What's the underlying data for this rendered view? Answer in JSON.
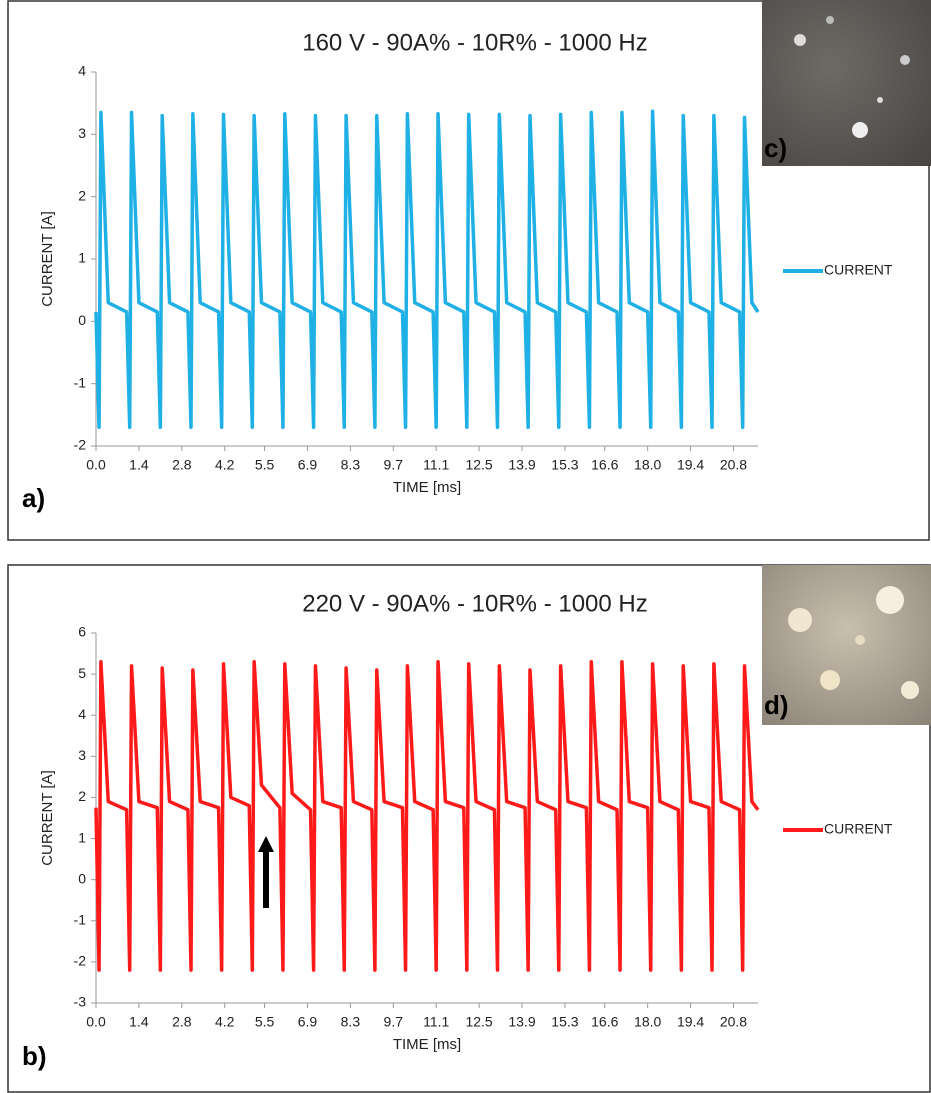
{
  "chart_data": [
    {
      "type": "line",
      "title": "160 V - 90A% - 10R% - 1000 Hz",
      "x_label": "TIME [ms]",
      "y_label": "CURRENT [A]",
      "panel_label": "a)",
      "photo_label": "c)",
      "x": [
        0,
        0.1,
        0.16,
        0.4,
        1,
        1.1,
        1.16,
        1.4,
        2,
        2.1,
        2.16,
        2.4,
        3,
        3.1,
        3.16,
        3.4,
        4,
        4.1,
        4.16,
        4.4,
        5,
        5.1,
        5.16,
        5.4,
        6,
        6.1,
        6.16,
        6.4,
        7,
        7.1,
        7.16,
        7.4,
        8,
        8.1,
        8.16,
        8.4,
        9,
        9.1,
        9.16,
        9.4,
        10,
        10.1,
        10.16,
        10.4,
        11,
        11.1,
        11.16,
        11.4,
        12,
        12.1,
        12.16,
        12.4,
        13,
        13.1,
        13.16,
        13.4,
        14,
        14.1,
        14.16,
        14.4,
        15,
        15.1,
        15.16,
        15.4,
        16,
        16.1,
        16.16,
        16.4,
        17,
        17.1,
        17.16,
        17.4,
        18,
        18.1,
        18.16,
        18.4,
        19,
        19.1,
        19.16,
        19.4,
        20,
        20.1,
        20.16,
        20.4,
        21,
        21.1,
        21.16,
        21.4,
        21.6
      ],
      "series": [
        {
          "name": "CURRENT",
          "color": "#1fb0e6",
          "values": [
            0.15,
            -1.7,
            3.35,
            0.3,
            0.15,
            -1.7,
            3.35,
            0.3,
            0.15,
            -1.7,
            3.3,
            0.3,
            0.15,
            -1.7,
            3.33,
            0.3,
            0.15,
            -1.7,
            3.32,
            0.3,
            0.15,
            -1.7,
            3.3,
            0.3,
            0.15,
            -1.7,
            3.33,
            0.3,
            0.15,
            -1.7,
            3.3,
            0.3,
            0.15,
            -1.7,
            3.3,
            0.3,
            0.15,
            -1.7,
            3.3,
            0.3,
            0.15,
            -1.7,
            3.33,
            0.3,
            0.15,
            -1.7,
            3.33,
            0.3,
            0.15,
            -1.7,
            3.32,
            0.3,
            0.15,
            -1.7,
            3.32,
            0.3,
            0.15,
            -1.7,
            3.3,
            0.3,
            0.15,
            -1.7,
            3.32,
            0.3,
            0.15,
            -1.7,
            3.35,
            0.3,
            0.15,
            -1.7,
            3.35,
            0.3,
            0.15,
            -1.7,
            3.37,
            0.3,
            0.15,
            -1.7,
            3.3,
            0.3,
            0.15,
            -1.7,
            3.3,
            0.3,
            0.15,
            -1.7,
            3.27,
            0.3,
            0.15
          ]
        }
      ],
      "xlim": [
        0,
        21.6
      ],
      "xticks": [
        {
          "value": 0,
          "label": "0.0"
        },
        1.4,
        2.8,
        4.2,
        5.5,
        6.9,
        8.3,
        9.7,
        11.1,
        12.5,
        13.9,
        15.3,
        16.6,
        {
          "value": 18,
          "label": "18.0"
        },
        19.4,
        20.8
      ],
      "ylim": [
        -2,
        4
      ],
      "yticks": [
        -2,
        -1,
        0,
        1,
        2,
        3,
        4
      ],
      "legend": "right"
    },
    {
      "type": "line",
      "title": "220 V - 90A% - 10R% - 1000 Hz",
      "x_label": "TIME [ms]",
      "y_label": "CURRENT [A]",
      "panel_label": "b)",
      "photo_label": "d)",
      "x": [
        0,
        0.1,
        0.16,
        0.4,
        1,
        1.1,
        1.16,
        1.4,
        2,
        2.1,
        2.16,
        2.4,
        3,
        3.1,
        3.16,
        3.4,
        4,
        4.1,
        4.16,
        4.4,
        5,
        5.1,
        5.16,
        5.4,
        6,
        6.1,
        6.16,
        6.4,
        7,
        7.1,
        7.16,
        7.4,
        8,
        8.1,
        8.16,
        8.4,
        9,
        9.1,
        9.16,
        9.4,
        10,
        10.1,
        10.16,
        10.4,
        11,
        11.1,
        11.16,
        11.4,
        12,
        12.1,
        12.16,
        12.4,
        13,
        13.1,
        13.16,
        13.4,
        14,
        14.1,
        14.16,
        14.4,
        15,
        15.1,
        15.16,
        15.4,
        16,
        16.1,
        16.16,
        16.4,
        17,
        17.1,
        17.16,
        17.4,
        18,
        18.1,
        18.16,
        18.4,
        19,
        19.1,
        19.16,
        19.4,
        20,
        20.1,
        20.16,
        20.4,
        21,
        21.1,
        21.16,
        21.4,
        21.6
      ],
      "series": [
        {
          "name": "CURRENT",
          "color": "#ff1a1a",
          "values": [
            1.75,
            -2.2,
            5.3,
            1.9,
            1.7,
            -2.2,
            5.2,
            1.9,
            1.75,
            -2.2,
            5.15,
            1.9,
            1.7,
            -2.2,
            5.1,
            1.9,
            1.75,
            -2.2,
            5.25,
            2.0,
            1.8,
            -2.2,
            5.3,
            2.3,
            1.75,
            -2.2,
            5.25,
            2.1,
            1.7,
            -2.2,
            5.2,
            1.9,
            1.75,
            -2.2,
            5.15,
            1.9,
            1.7,
            -2.2,
            5.1,
            1.9,
            1.75,
            -2.2,
            5.2,
            1.9,
            1.7,
            -2.2,
            5.3,
            1.9,
            1.75,
            -2.2,
            5.25,
            1.9,
            1.7,
            -2.2,
            5.2,
            1.9,
            1.75,
            -2.2,
            5.1,
            1.9,
            1.7,
            -2.2,
            5.2,
            1.9,
            1.75,
            -2.2,
            5.3,
            1.9,
            1.7,
            -2.2,
            5.3,
            1.9,
            1.75,
            -2.2,
            5.25,
            1.9,
            1.7,
            -2.2,
            5.2,
            1.9,
            1.75,
            -2.2,
            5.25,
            1.9,
            1.7,
            -2.2,
            5.2,
            1.9,
            1.7
          ]
        }
      ],
      "xlim": [
        0,
        21.6
      ],
      "xticks": [
        {
          "value": 0,
          "label": "0.0"
        },
        1.4,
        2.8,
        4.2,
        5.5,
        6.9,
        8.3,
        9.7,
        11.1,
        12.5,
        13.9,
        15.3,
        16.6,
        {
          "value": 18,
          "label": "18.0"
        },
        19.4,
        20.8
      ],
      "ylim": [
        -3,
        6
      ],
      "yticks": [
        -3,
        -2,
        -1,
        0,
        1,
        2,
        3,
        4,
        5,
        6
      ],
      "legend": "right"
    }
  ]
}
